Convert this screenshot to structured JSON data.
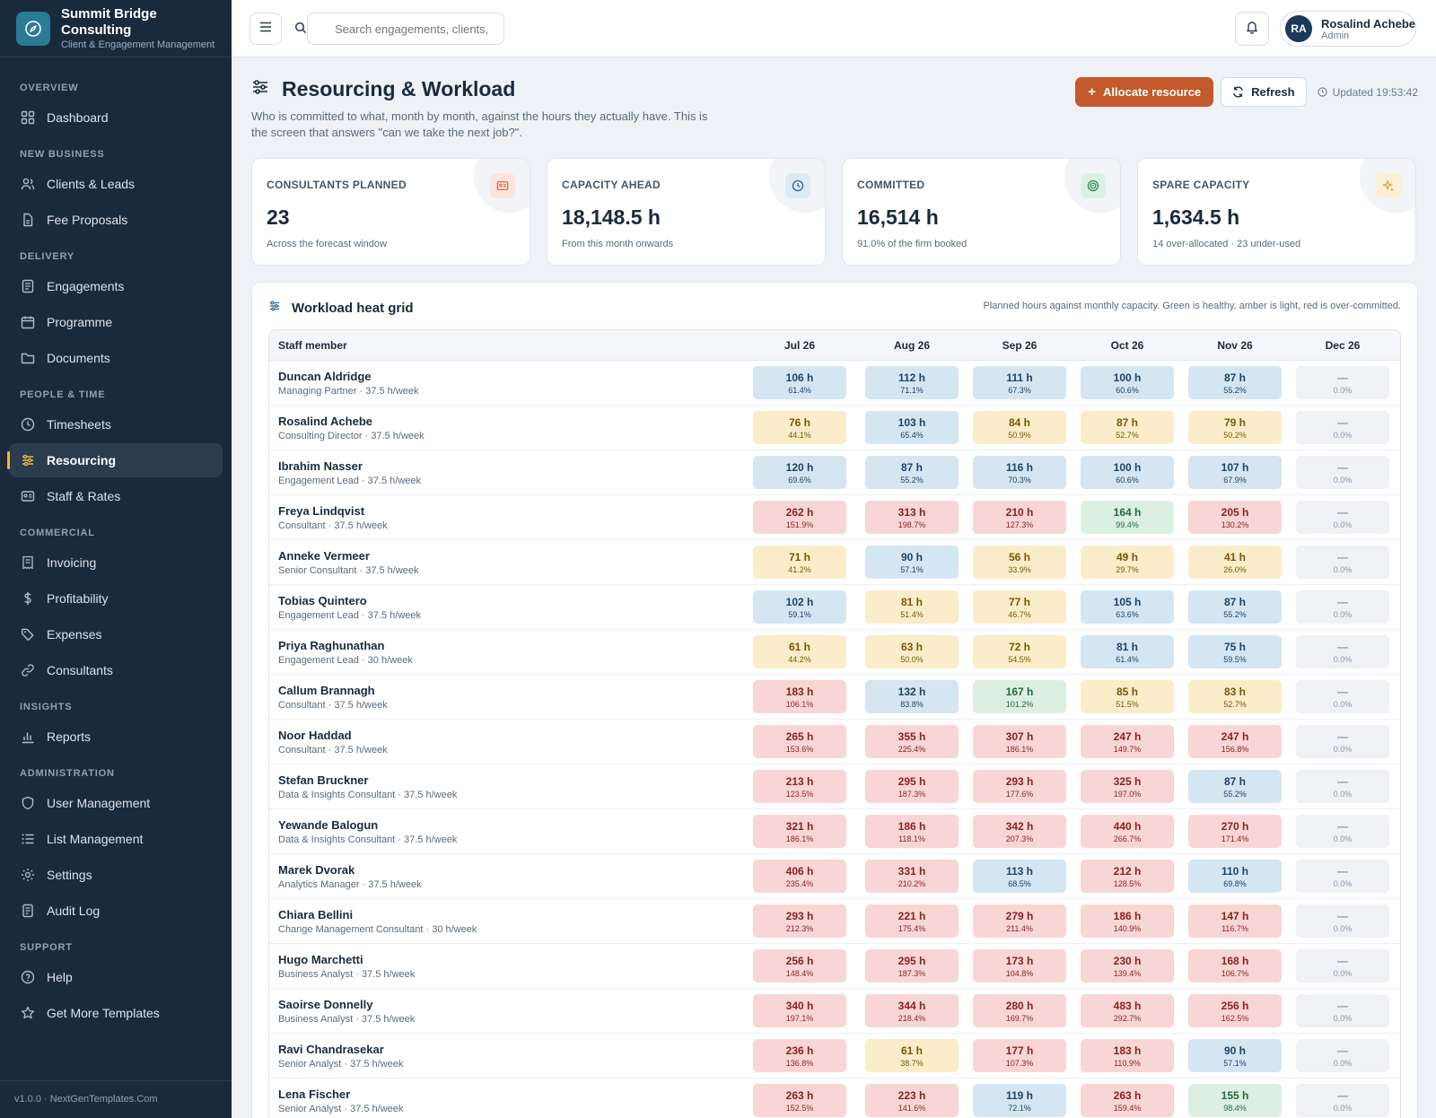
{
  "brand": {
    "name": "Summit Bridge Consulting",
    "tagline": "Client & Engagement Management"
  },
  "nav": {
    "overview": "Overview",
    "dashboard": "Dashboard",
    "new_business": "New Business",
    "clients": "Clients & Leads",
    "fee_proposals": "Fee Proposals",
    "delivery": "Delivery",
    "engagements": "Engagements",
    "programme": "Programme",
    "documents": "Documents",
    "people_time": "People & Time",
    "timesheets": "Timesheets",
    "resourcing": "Resourcing",
    "staff_rates": "Staff & Rates",
    "commercial": "Commercial",
    "invoicing": "Invoicing",
    "profitability": "Profitability",
    "expenses": "Expenses",
    "consultants": "Consultants",
    "insights": "Insights",
    "reports": "Reports",
    "administration": "Administration",
    "user_management": "User Management",
    "list_management": "List Management",
    "settings": "Settings",
    "audit_log": "Audit Log",
    "support": "Support",
    "help": "Help",
    "more_templates": "Get More Templates"
  },
  "footer": "v1.0.0 · NextGenTemplates.Com",
  "topbar": {
    "search_placeholder": "Search engagements, clients, s",
    "user": {
      "initials": "RA",
      "name": "Rosalind Achebe",
      "role": "Admin"
    }
  },
  "page": {
    "title": "Resourcing & Workload",
    "description": "Who is committed to what, month by month, against the hours they actually have. This is the screen that answers \"can we take the next job?\".",
    "allocate_label": "Allocate resource",
    "refresh_label": "Refresh",
    "updated": "Updated 19:53:42"
  },
  "kpis": [
    {
      "label": "Consultants planned",
      "value": "23",
      "sub": "Across the forecast window",
      "icon": "id-card-icon",
      "color": "#e06b47"
    },
    {
      "label": "Capacity ahead",
      "value": "18,148.5 h",
      "sub": "From this month onwards",
      "icon": "clock-icon",
      "color": "#2b6c8e"
    },
    {
      "label": "Committed",
      "value": "16,514 h",
      "sub": "91.0% of the firm booked",
      "icon": "target-icon",
      "color": "#2f8f5a"
    },
    {
      "label": "Spare capacity",
      "value": "1,634.5 h",
      "sub": "14 over-allocated · 23 under-used",
      "icon": "sparkle-icon",
      "color": "#e0a23a"
    }
  ],
  "grid": {
    "title": "Workload heat grid",
    "note": "Planned hours against monthly capacity. Green is healthy, amber is light, red is over-committed.",
    "staff_header": "Staff member",
    "months": [
      "Jul 26",
      "Aug 26",
      "Sep 26",
      "Oct 26",
      "Nov 26",
      "Dec 26"
    ],
    "rows": [
      {
        "name": "Duncan Aldridge",
        "role": "Managing Partner · 37.5 h/week",
        "cells": [
          [
            "106 h",
            "61.4%"
          ],
          [
            "112 h",
            "71.1%"
          ],
          [
            "111 h",
            "67.3%"
          ],
          [
            "100 h",
            "60.6%"
          ],
          [
            "87 h",
            "55.2%"
          ],
          [
            "—",
            "0.0%"
          ]
        ]
      },
      {
        "name": "Rosalind Achebe",
        "role": "Consulting Director · 37.5 h/week",
        "cells": [
          [
            "76 h",
            "44.1%"
          ],
          [
            "103 h",
            "65.4%"
          ],
          [
            "84 h",
            "50.9%"
          ],
          [
            "87 h",
            "52.7%"
          ],
          [
            "79 h",
            "50.2%"
          ],
          [
            "—",
            "0.0%"
          ]
        ]
      },
      {
        "name": "Ibrahim Nasser",
        "role": "Engagement Lead · 37.5 h/week",
        "cells": [
          [
            "120 h",
            "69.6%"
          ],
          [
            "87 h",
            "55.2%"
          ],
          [
            "116 h",
            "70.3%"
          ],
          [
            "100 h",
            "60.6%"
          ],
          [
            "107 h",
            "67.9%"
          ],
          [
            "—",
            "0.0%"
          ]
        ]
      },
      {
        "name": "Freya Lindqvist",
        "role": "Consultant · 37.5 h/week",
        "cells": [
          [
            "262 h",
            "151.9%"
          ],
          [
            "313 h",
            "198.7%"
          ],
          [
            "210 h",
            "127.3%"
          ],
          [
            "164 h",
            "99.4%"
          ],
          [
            "205 h",
            "130.2%"
          ],
          [
            "—",
            "0.0%"
          ]
        ]
      },
      {
        "name": "Anneke Vermeer",
        "role": "Senior Consultant · 37.5 h/week",
        "cells": [
          [
            "71 h",
            "41.2%"
          ],
          [
            "90 h",
            "57.1%"
          ],
          [
            "56 h",
            "33.9%"
          ],
          [
            "49 h",
            "29.7%"
          ],
          [
            "41 h",
            "26.0%"
          ],
          [
            "—",
            "0.0%"
          ]
        ]
      },
      {
        "name": "Tobias Quintero",
        "role": "Engagement Lead · 37.5 h/week",
        "cells": [
          [
            "102 h",
            "59.1%"
          ],
          [
            "81 h",
            "51.4%"
          ],
          [
            "77 h",
            "46.7%"
          ],
          [
            "105 h",
            "63.6%"
          ],
          [
            "87 h",
            "55.2%"
          ],
          [
            "—",
            "0.0%"
          ]
        ]
      },
      {
        "name": "Priya Raghunathan",
        "role": "Engagement Lead · 30 h/week",
        "cells": [
          [
            "61 h",
            "44.2%"
          ],
          [
            "63 h",
            "50.0%"
          ],
          [
            "72 h",
            "54.5%"
          ],
          [
            "81 h",
            "61.4%"
          ],
          [
            "75 h",
            "59.5%"
          ],
          [
            "—",
            "0.0%"
          ]
        ]
      },
      {
        "name": "Callum Brannagh",
        "role": "Consultant · 37.5 h/week",
        "cells": [
          [
            "183 h",
            "106.1%"
          ],
          [
            "132 h",
            "83.8%"
          ],
          [
            "167 h",
            "101.2%"
          ],
          [
            "85 h",
            "51.5%"
          ],
          [
            "83 h",
            "52.7%"
          ],
          [
            "—",
            "0.0%"
          ]
        ]
      },
      {
        "name": "Noor Haddad",
        "role": "Consultant · 37.5 h/week",
        "cells": [
          [
            "265 h",
            "153.6%"
          ],
          [
            "355 h",
            "225.4%"
          ],
          [
            "307 h",
            "186.1%"
          ],
          [
            "247 h",
            "149.7%"
          ],
          [
            "247 h",
            "156.8%"
          ],
          [
            "—",
            "0.0%"
          ]
        ]
      },
      {
        "name": "Stefan Bruckner",
        "role": "Data & Insights Consultant · 37.5 h/week",
        "cells": [
          [
            "213 h",
            "123.5%"
          ],
          [
            "295 h",
            "187.3%"
          ],
          [
            "293 h",
            "177.6%"
          ],
          [
            "325 h",
            "197.0%"
          ],
          [
            "87 h",
            "55.2%"
          ],
          [
            "—",
            "0.0%"
          ]
        ]
      },
      {
        "name": "Yewande Balogun",
        "role": "Data & Insights Consultant · 37.5 h/week",
        "cells": [
          [
            "321 h",
            "186.1%"
          ],
          [
            "186 h",
            "118.1%"
          ],
          [
            "342 h",
            "207.3%"
          ],
          [
            "440 h",
            "266.7%"
          ],
          [
            "270 h",
            "171.4%"
          ],
          [
            "—",
            "0.0%"
          ]
        ]
      },
      {
        "name": "Marek Dvorak",
        "role": "Analytics Manager · 37.5 h/week",
        "cells": [
          [
            "406 h",
            "235.4%"
          ],
          [
            "331 h",
            "210.2%"
          ],
          [
            "113 h",
            "68.5%"
          ],
          [
            "212 h",
            "128.5%"
          ],
          [
            "110 h",
            "69.8%"
          ],
          [
            "—",
            "0.0%"
          ]
        ]
      },
      {
        "name": "Chiara Bellini",
        "role": "Change Management Consultant · 30 h/week",
        "cells": [
          [
            "293 h",
            "212.3%"
          ],
          [
            "221 h",
            "175.4%"
          ],
          [
            "279 h",
            "211.4%"
          ],
          [
            "186 h",
            "140.9%"
          ],
          [
            "147 h",
            "116.7%"
          ],
          [
            "—",
            "0.0%"
          ]
        ]
      },
      {
        "name": "Hugo Marchetti",
        "role": "Business Analyst · 37.5 h/week",
        "cells": [
          [
            "256 h",
            "148.4%"
          ],
          [
            "295 h",
            "187.3%"
          ],
          [
            "173 h",
            "104.8%"
          ],
          [
            "230 h",
            "139.4%"
          ],
          [
            "168 h",
            "106.7%"
          ],
          [
            "—",
            "0.0%"
          ]
        ]
      },
      {
        "name": "Saoirse Donnelly",
        "role": "Business Analyst · 37.5 h/week",
        "cells": [
          [
            "340 h",
            "197.1%"
          ],
          [
            "344 h",
            "218.4%"
          ],
          [
            "280 h",
            "169.7%"
          ],
          [
            "483 h",
            "292.7%"
          ],
          [
            "256 h",
            "162.5%"
          ],
          [
            "—",
            "0.0%"
          ]
        ]
      },
      {
        "name": "Ravi Chandrasekar",
        "role": "Senior Analyst · 37.5 h/week",
        "cells": [
          [
            "236 h",
            "136.8%"
          ],
          [
            "61 h",
            "38.7%"
          ],
          [
            "177 h",
            "107.3%"
          ],
          [
            "183 h",
            "110.9%"
          ],
          [
            "90 h",
            "57.1%"
          ],
          [
            "—",
            "0.0%"
          ]
        ]
      },
      {
        "name": "Lena Fischer",
        "role": "Senior Analyst · 37.5 h/week",
        "cells": [
          [
            "263 h",
            "152.5%"
          ],
          [
            "223 h",
            "141.6%"
          ],
          [
            "119 h",
            "72.1%"
          ],
          [
            "263 h",
            "159.4%"
          ],
          [
            "155 h",
            "98.4%"
          ],
          [
            "—",
            "0.0%"
          ]
        ]
      }
    ]
  },
  "status_colors": {
    "healthy": "#dcefe2",
    "light": "#fbedc9",
    "over": "#f8d6d6",
    "normal": "#d4e6f2",
    "none": "#eff1f4"
  }
}
